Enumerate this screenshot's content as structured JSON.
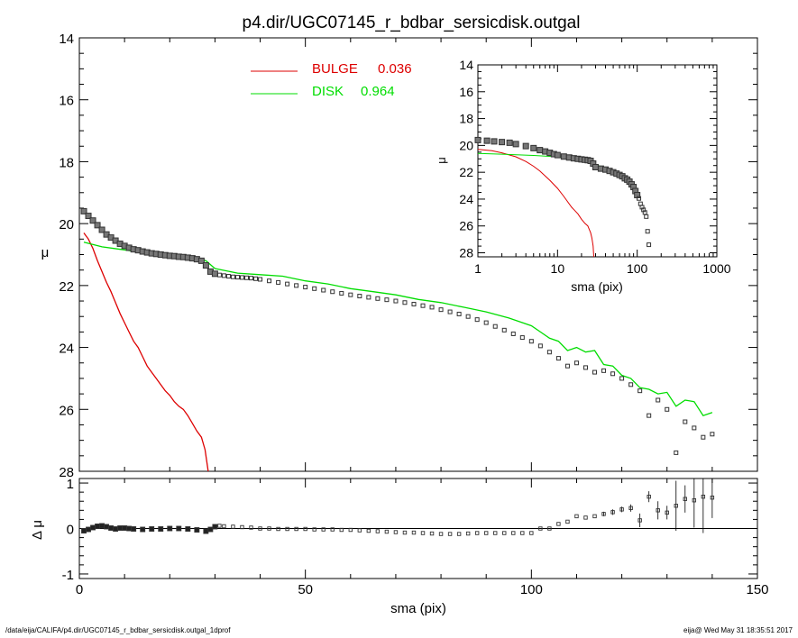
{
  "title": "p4.dir/UGC07145_r_bdbar_sersicdisk.outgal",
  "footer": {
    "left": "/data/eija/CALIFA/p4.dir/UGC07145_r_bdbar_sersicdisk.outgal_1dprof",
    "right": "eija@  Wed May 31 18:35:51 2017"
  },
  "colors": {
    "bulge": "#dd0000",
    "disk": "#00dd00",
    "data": "#000000",
    "marker": "#555555"
  },
  "chart_data": [
    {
      "type": "line",
      "panel": "main",
      "xlabel": "",
      "ylabel": "μ",
      "xlim": [
        0,
        150
      ],
      "ylim": [
        28,
        14
      ],
      "yticks": [
        14,
        16,
        18,
        20,
        22,
        24,
        26,
        28
      ],
      "yticks_display": [
        "14",
        "16",
        "18",
        "20",
        "22",
        "24",
        "26",
        "28"
      ],
      "legend": {
        "placement": "top-center",
        "entries": [
          {
            "label": "BULGE",
            "value": "0.036",
            "color": "#dd0000"
          },
          {
            "label": "DISK",
            "value": "0.964",
            "color": "#00dd00"
          }
        ]
      },
      "series": [
        {
          "name": "BULGE",
          "kind": "line",
          "color": "#dd0000",
          "x": [
            1,
            2,
            3,
            4,
            5,
            6,
            7,
            8,
            9,
            10,
            11,
            12,
            13,
            14,
            15,
            16,
            17,
            18,
            19,
            20,
            21,
            22,
            23,
            24,
            25,
            26,
            27,
            27.8,
            28.5
          ],
          "y": [
            20.3,
            20.5,
            20.8,
            21.2,
            21.55,
            21.9,
            22.2,
            22.55,
            22.9,
            23.2,
            23.5,
            23.8,
            24.0,
            24.3,
            24.6,
            24.8,
            25.0,
            25.2,
            25.4,
            25.55,
            25.75,
            25.9,
            26.0,
            26.2,
            26.45,
            26.7,
            26.9,
            27.3,
            28.0
          ]
        },
        {
          "name": "DISK",
          "kind": "line",
          "color": "#00dd00",
          "x": [
            1,
            5,
            10,
            15,
            20,
            25,
            28,
            30,
            35,
            40,
            45,
            50,
            55,
            60,
            65,
            70,
            75,
            80,
            85,
            90,
            95,
            100,
            102,
            104,
            106,
            108,
            110,
            112,
            114,
            116,
            118,
            120,
            122,
            124,
            126,
            128,
            130,
            132,
            134,
            136,
            138,
            140
          ],
          "y": [
            20.6,
            20.75,
            20.85,
            20.95,
            21.0,
            21.1,
            21.2,
            21.45,
            21.6,
            21.65,
            21.7,
            21.85,
            21.95,
            22.1,
            22.2,
            22.3,
            22.45,
            22.55,
            22.7,
            22.85,
            23.05,
            23.3,
            23.5,
            23.7,
            23.8,
            24.1,
            24.0,
            24.15,
            24.1,
            24.55,
            24.6,
            24.9,
            25.0,
            25.3,
            25.35,
            25.5,
            25.45,
            25.9,
            25.7,
            25.75,
            26.2,
            26.1
          ]
        },
        {
          "name": "data",
          "kind": "markers",
          "color": "#000000",
          "x": [
            1,
            2,
            3,
            4,
            5,
            6,
            7,
            8,
            9,
            10,
            11,
            12,
            13,
            14,
            15,
            16,
            17,
            18,
            19,
            20,
            21,
            22,
            23,
            24,
            25,
            26,
            27,
            28,
            29,
            30,
            31,
            32,
            33,
            34,
            35,
            36,
            37,
            38,
            39,
            40,
            42,
            44,
            46,
            48,
            50,
            52,
            54,
            56,
            58,
            60,
            62,
            64,
            66,
            68,
            70,
            72,
            74,
            76,
            78,
            80,
            82,
            84,
            86,
            88,
            90,
            92,
            94,
            96,
            98,
            100,
            102,
            104,
            106,
            108,
            110,
            112,
            114,
            116,
            118,
            120,
            122,
            124,
            126,
            128,
            130,
            132,
            134,
            136,
            138,
            140
          ],
          "y": [
            19.6,
            19.75,
            19.9,
            20.05,
            20.2,
            20.35,
            20.45,
            20.55,
            20.65,
            20.72,
            20.78,
            20.83,
            20.86,
            20.9,
            20.93,
            20.96,
            20.98,
            21.0,
            21.02,
            21.04,
            21.05,
            21.07,
            21.08,
            21.1,
            21.12,
            21.15,
            21.2,
            21.35,
            21.55,
            21.62,
            21.66,
            21.68,
            21.7,
            21.72,
            21.73,
            21.74,
            21.75,
            21.76,
            21.78,
            21.8,
            21.85,
            21.9,
            21.95,
            22.0,
            22.05,
            22.1,
            22.15,
            22.2,
            22.25,
            22.3,
            22.34,
            22.38,
            22.42,
            22.46,
            22.5,
            22.55,
            22.6,
            22.65,
            22.7,
            22.78,
            22.85,
            22.92,
            23.0,
            23.1,
            23.2,
            23.32,
            23.44,
            23.56,
            23.68,
            23.8,
            23.95,
            24.15,
            24.35,
            24.6,
            24.5,
            24.65,
            24.8,
            24.75,
            24.85,
            25.0,
            25.2,
            25.4,
            26.2,
            25.7,
            26.0,
            27.4,
            26.4,
            26.6,
            26.9,
            26.8
          ]
        }
      ]
    },
    {
      "type": "scatter",
      "panel": "residual",
      "xlabel": "sma (pix)",
      "ylabel": "Δ μ",
      "xlim": [
        0,
        150
      ],
      "ylim": [
        -1.1,
        1.1
      ],
      "xticks": [
        0,
        50,
        100,
        150
      ],
      "yticks": [
        -1,
        0,
        1
      ],
      "series": [
        {
          "name": "residual",
          "kind": "markers",
          "color": "#000000",
          "x": [
            1,
            2,
            3,
            4,
            5,
            6,
            7,
            8,
            9,
            10,
            11,
            12,
            14,
            16,
            18,
            20,
            22,
            24,
            26,
            28,
            29,
            30,
            31,
            32,
            34,
            36,
            38,
            40,
            42,
            44,
            46,
            48,
            50,
            52,
            54,
            56,
            58,
            60,
            62,
            64,
            66,
            68,
            70,
            72,
            74,
            76,
            78,
            80,
            82,
            84,
            86,
            88,
            90,
            92,
            94,
            96,
            98,
            100,
            102,
            104,
            106,
            108,
            110,
            112,
            114,
            116,
            118,
            120,
            122,
            124,
            126,
            128,
            130,
            132,
            134,
            136,
            138,
            140
          ],
          "y": [
            -0.05,
            -0.02,
            0.02,
            0.05,
            0.06,
            0.04,
            0.01,
            -0.01,
            0.01,
            0.01,
            0.0,
            -0.01,
            -0.02,
            -0.01,
            -0.01,
            0.0,
            0.0,
            -0.01,
            -0.03,
            -0.06,
            -0.02,
            0.04,
            0.06,
            0.05,
            0.04,
            0.03,
            0.02,
            0.0,
            0.0,
            -0.01,
            -0.01,
            -0.01,
            -0.01,
            -0.02,
            -0.02,
            -0.02,
            -0.03,
            -0.03,
            -0.04,
            -0.05,
            -0.06,
            -0.07,
            -0.08,
            -0.09,
            -0.09,
            -0.1,
            -0.11,
            -0.12,
            -0.12,
            -0.12,
            -0.11,
            -0.1,
            -0.1,
            -0.1,
            -0.1,
            -0.1,
            -0.1,
            -0.1,
            0.0,
            0.0,
            0.1,
            0.15,
            0.27,
            0.24,
            0.27,
            0.32,
            0.36,
            0.42,
            0.45,
            0.18,
            0.7,
            0.4,
            0.35,
            0.5,
            0.65,
            0.62,
            0.7,
            0.68
          ],
          "yerr": [
            0,
            0,
            0,
            0,
            0,
            0,
            0,
            0,
            0,
            0,
            0,
            0,
            0,
            0,
            0,
            0,
            0,
            0,
            0,
            0,
            0,
            0,
            0,
            0,
            0,
            0,
            0,
            0,
            0,
            0,
            0,
            0,
            0,
            0,
            0,
            0,
            0,
            0,
            0,
            0,
            0,
            0,
            0,
            0,
            0,
            0,
            0,
            0,
            0,
            0,
            0,
            0,
            0,
            0,
            0,
            0,
            0,
            0,
            0,
            0,
            0,
            0,
            0,
            0,
            0,
            0.05,
            0.06,
            0.06,
            0.08,
            0.15,
            0.12,
            0.2,
            0.15,
            0.55,
            0.3,
            0.6,
            0.8,
            0.45
          ]
        }
      ]
    },
    {
      "type": "line",
      "panel": "inset",
      "xlabel": "sma (pix)",
      "ylabel": "μ",
      "xscale": "log",
      "xlim": [
        1,
        1000
      ],
      "ylim": [
        28.3,
        14
      ],
      "xticks": [
        1,
        10,
        100,
        1000
      ],
      "yticks": [
        14,
        16,
        18,
        20,
        22,
        24,
        26,
        28
      ],
      "series": [
        {
          "name": "BULGE",
          "kind": "line",
          "color": "#dd0000",
          "x": [
            1,
            1.5,
            2,
            3,
            4,
            5,
            6,
            8,
            10,
            12,
            15,
            18,
            20,
            22,
            24,
            26,
            27,
            28,
            28.5
          ],
          "y": [
            20.3,
            20.4,
            20.55,
            20.85,
            21.2,
            21.55,
            21.9,
            22.6,
            23.2,
            23.8,
            24.6,
            25.1,
            25.5,
            25.8,
            26.0,
            26.5,
            26.9,
            27.5,
            28.3
          ]
        },
        {
          "name": "DISK",
          "kind": "line",
          "color": "#00dd00",
          "x": [
            1,
            2,
            5,
            10,
            20,
            30,
            40,
            50,
            60
          ],
          "y": [
            20.6,
            20.65,
            20.75,
            20.85,
            21.0,
            21.45,
            21.65,
            21.85,
            22.1
          ]
        },
        {
          "name": "data",
          "kind": "markers",
          "color": "#000000",
          "x": [
            1,
            1.3,
            1.6,
            2,
            2.5,
            3,
            4,
            5,
            6,
            7,
            8,
            9,
            10,
            12,
            14,
            16,
            18,
            20,
            22,
            24,
            26,
            28,
            30,
            35,
            40,
            45,
            50,
            55,
            60,
            65,
            70,
            75,
            80,
            85,
            90,
            95,
            100,
            105,
            110,
            115,
            120,
            125,
            130,
            135,
            140
          ],
          "y": [
            19.6,
            19.65,
            19.7,
            19.75,
            19.8,
            19.9,
            20.05,
            20.2,
            20.35,
            20.45,
            20.55,
            20.65,
            20.72,
            20.83,
            20.9,
            20.96,
            21.0,
            21.04,
            21.07,
            21.1,
            21.15,
            21.35,
            21.62,
            21.73,
            21.8,
            21.9,
            22.0,
            22.1,
            22.2,
            22.3,
            22.45,
            22.55,
            22.7,
            22.9,
            23.1,
            23.4,
            23.7,
            23.95,
            24.35,
            24.6,
            24.8,
            25.0,
            25.3,
            26.4,
            27.4
          ]
        }
      ]
    }
  ]
}
